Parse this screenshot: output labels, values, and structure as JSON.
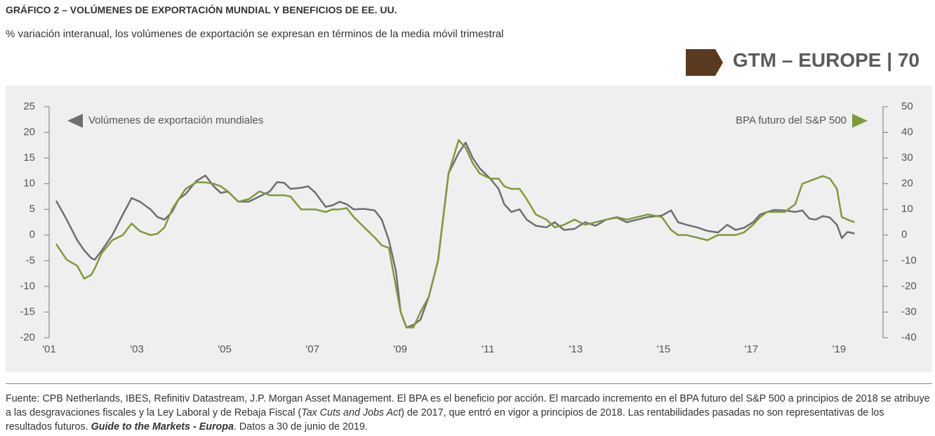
{
  "chart_data": {
    "type": "line",
    "title": "GRÁFICO 2 – VOLÚMENES DE EXPORTACIÓN MUNDIAL Y BENEFICIOS DE EE. UU.",
    "subtitle": "% variación interanual, los volúmenes de exportación se expresan en términos de la media móvil trimestral",
    "x": [
      2001.16,
      2001.4,
      2001.64,
      2001.8,
      2001.96,
      2002.04,
      2002.2,
      2002.44,
      2002.68,
      2002.88,
      2003.07,
      2003.31,
      2003.47,
      2003.63,
      2003.8,
      2003.95,
      2004.11,
      2004.35,
      2004.56,
      2004.75,
      2004.91,
      2005.07,
      2005.31,
      2005.55,
      2005.79,
      2006.03,
      2006.19,
      2006.35,
      2006.5,
      2006.74,
      2006.9,
      2007.06,
      2007.3,
      2007.46,
      2007.62,
      2007.78,
      2007.94,
      2008.18,
      2008.42,
      2008.58,
      2008.74,
      2008.9,
      2009.01,
      2009.14,
      2009.3,
      2009.46,
      2009.65,
      2009.86,
      2010.1,
      2010.33,
      2010.49,
      2010.65,
      2010.81,
      2011.05,
      2011.24,
      2011.37,
      2011.53,
      2011.72,
      2011.88,
      2012.09,
      2012.33,
      2012.52,
      2012.73,
      2012.97,
      2013.21,
      2013.45,
      2013.69,
      2013.93,
      2014.16,
      2014.4,
      2014.64,
      2014.96,
      2015.17,
      2015.33,
      2015.52,
      2015.76,
      2016.0,
      2016.24,
      2016.45,
      2016.64,
      2016.83,
      2017.04,
      2017.2,
      2017.36,
      2017.52,
      2017.76,
      2018.0,
      2018.16,
      2018.32,
      2018.47,
      2018.63,
      2018.79,
      2018.95,
      2019.06,
      2019.19,
      2019.35
    ],
    "series": [
      {
        "name": "Volúmenes de exportación mundiales",
        "color": "#6d6e71",
        "axis": "y",
        "values": [
          6.7,
          3,
          -1,
          -3,
          -4.5,
          -4.8,
          -3,
          0,
          4,
          7.2,
          6.5,
          5,
          3.5,
          3.0,
          4.5,
          7,
          8,
          10.5,
          11.6,
          9.5,
          8.2,
          8.5,
          6.5,
          6.5,
          7.5,
          8.5,
          10.3,
          10.2,
          9.0,
          9.2,
          9.5,
          8.3,
          5.5,
          5.8,
          6.5,
          6.0,
          5.0,
          5.1,
          4.8,
          3.0,
          -1,
          -7,
          -15,
          -18,
          -17.5,
          -16.5,
          -12,
          -5,
          12,
          16,
          18,
          15,
          13,
          11,
          9,
          6,
          4.5,
          5,
          3,
          1.8,
          1.5,
          2.5,
          1.0,
          1.2,
          2.5,
          1.8,
          3.0,
          3.4,
          2.5,
          3.0,
          3.5,
          3.8,
          4.8,
          2.5,
          2.0,
          1.5,
          0.8,
          0.5,
          2.0,
          1.0,
          1.4,
          2.5,
          4.0,
          4.5,
          4.9,
          4.8,
          4.5,
          4.8,
          3.2,
          3.0,
          3.7,
          3.4,
          2.0,
          -0.6,
          0.6,
          0.3
        ]
      },
      {
        "name": "BPA futuro del S&P 500",
        "color": "#7f9a3a",
        "axis": "y2",
        "values": [
          -3.5,
          -9.6,
          -12,
          -17,
          -15.5,
          -13,
          -7,
          -2,
          0,
          4.5,
          1.5,
          0,
          0.5,
          3,
          10,
          14,
          18,
          20.5,
          20.5,
          20,
          19,
          17,
          13,
          14,
          17,
          15.5,
          15.5,
          15.5,
          15,
          10,
          10,
          10,
          9,
          10,
          10,
          10.5,
          7,
          3,
          -1,
          -4,
          -5,
          -20,
          -30,
          -36,
          -36,
          -30,
          -24,
          -10,
          24,
          37,
          34,
          28,
          24,
          22,
          22,
          19,
          18,
          18,
          14,
          8,
          6,
          3,
          4,
          6,
          4,
          5,
          6,
          7,
          6,
          7,
          8,
          7,
          2,
          0,
          0,
          -1,
          -2,
          0,
          0,
          0,
          1,
          4,
          7,
          9,
          9,
          9,
          12,
          20,
          21,
          22,
          23,
          22,
          18,
          7,
          6,
          5
        ]
      }
    ],
    "xlim": [
      2001,
      2020
    ],
    "xticks": [
      {
        "value": 2001,
        "label": "'01"
      },
      {
        "value": 2003,
        "label": "'03"
      },
      {
        "value": 2005,
        "label": "'05"
      },
      {
        "value": 2007,
        "label": "'07"
      },
      {
        "value": 2009,
        "label": "'09"
      },
      {
        "value": 2011,
        "label": "'11"
      },
      {
        "value": 2013,
        "label": "'13"
      },
      {
        "value": 2015,
        "label": "'15"
      },
      {
        "value": 2017,
        "label": "'17"
      },
      {
        "value": 2019,
        "label": "'19"
      }
    ],
    "ylim": [
      -20,
      25
    ],
    "yticks": [
      -20,
      -15,
      -10,
      -5,
      0,
      5,
      10,
      15,
      20,
      25
    ],
    "y2lim": [
      -40,
      50
    ],
    "y2ticks": [
      -40,
      -30,
      -20,
      -10,
      0,
      10,
      20,
      30,
      40,
      50
    ]
  },
  "badge": "GTM – EUROPE | 70",
  "footnote": [
    "Fuente: CPB Netherlands, IBES, Refinitiv Datastream, J.P. Morgan Asset Management. El BPA es el beneficio por acción. El marcado incremento en el BPA futuro del S&P 500 a principios de 2018 se atribuye a las desgravaciones fiscales y la Ley Laboral y de Rebaja Fiscal (",
    "Tax Cuts and Jobs Act",
    ") de 2017, que entró en vigor a principios de 2018. Las rentabilidades pasadas no son representativas de los resultados futuros. ",
    "Guide to the Markets - Europa",
    ". Datos a 30 de junio de 2019."
  ]
}
